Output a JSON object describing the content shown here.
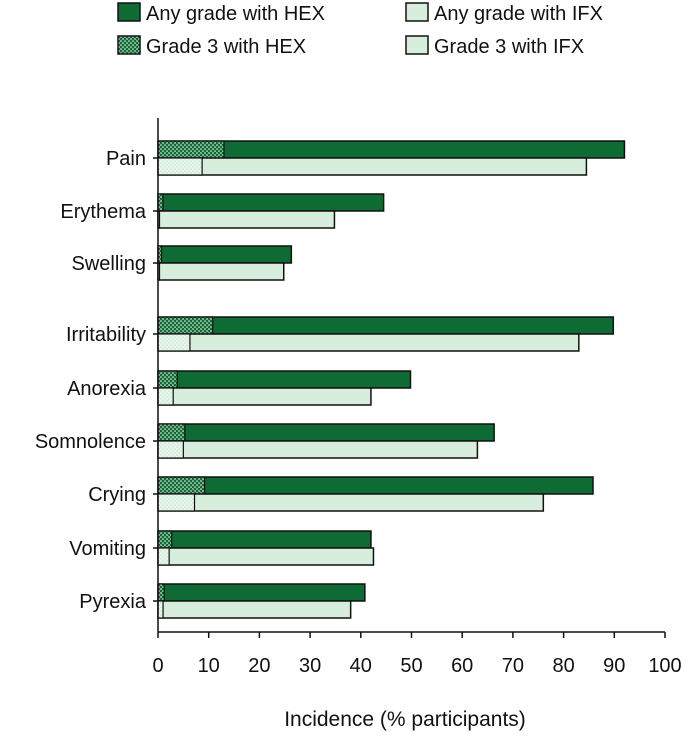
{
  "chart_data": {
    "type": "bar",
    "orientation": "horizontal",
    "categories": [
      "Pain",
      "Erythema",
      "Swelling",
      "Irritability",
      "Anorexia",
      "Somnolence",
      "Crying",
      "Vomiting",
      "Pyrexia"
    ],
    "series": [
      {
        "name": "Any grade with HEX",
        "group": "HEX",
        "kind": "any",
        "color": "#0f6b34",
        "values": [
          92,
          44.5,
          26.3,
          89.8,
          49.8,
          66.3,
          85.8,
          42,
          40.8
        ]
      },
      {
        "name": "Grade 3 with HEX",
        "group": "HEX",
        "kind": "grade3",
        "color": "#0f6b34",
        "values": [
          13,
          1,
          0.7,
          10.8,
          3.8,
          5.3,
          9.2,
          2.7,
          1.2
        ]
      },
      {
        "name": "Any grade with IFX",
        "group": "IFX",
        "kind": "any",
        "color": "#d8eedc",
        "values": [
          84.5,
          34.8,
          24.8,
          83,
          42,
          63,
          76,
          42.5,
          38
        ]
      },
      {
        "name": "Grade 3 with IFX",
        "group": "IFX",
        "kind": "grade3",
        "color": "#d8eedc",
        "values": [
          8.7,
          0.3,
          0.3,
          6.3,
          3,
          5,
          7.2,
          2.2,
          1
        ]
      }
    ],
    "xlabel": "Incidence (% participants)",
    "ylabel": "",
    "xlim": [
      0,
      100
    ],
    "xticks": [
      0,
      10,
      20,
      30,
      40,
      50,
      60,
      70,
      80,
      90,
      100
    ],
    "legend_position": "top",
    "grid": false
  }
}
